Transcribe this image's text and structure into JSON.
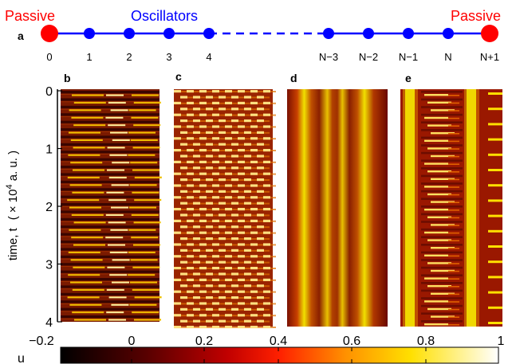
{
  "chain": {
    "panel_label": "a",
    "left_title": "Passive",
    "center_title": "Oscillators",
    "right_title": "Passive",
    "node_labels": [
      "0",
      "1",
      "2",
      "3",
      "4",
      "N−3",
      "N−2",
      "N−1",
      "N",
      "N+1"
    ],
    "passive_color": "#ff0000",
    "oscillator_color": "#0000ff"
  },
  "panels": {
    "labels": [
      "b",
      "c",
      "d",
      "e"
    ],
    "ylabel_main": "time, t",
    "ylabel_unit": "( × 10",
    "ylabel_exp": "4",
    "ylabel_tail": " a. u. )",
    "yticks": [
      "0",
      "1",
      "2",
      "3",
      "4"
    ]
  },
  "colorbar": {
    "label": "u",
    "ticks": [
      "−0.2",
      "0",
      "0.2",
      "0.4",
      "0.6",
      "0.8",
      "1"
    ]
  },
  "chart_data": {
    "type": "heatmap",
    "ylim": [
      0,
      4
    ],
    "colorbar_range": [
      -0.2,
      1
    ],
    "colormap": "hot"
  }
}
